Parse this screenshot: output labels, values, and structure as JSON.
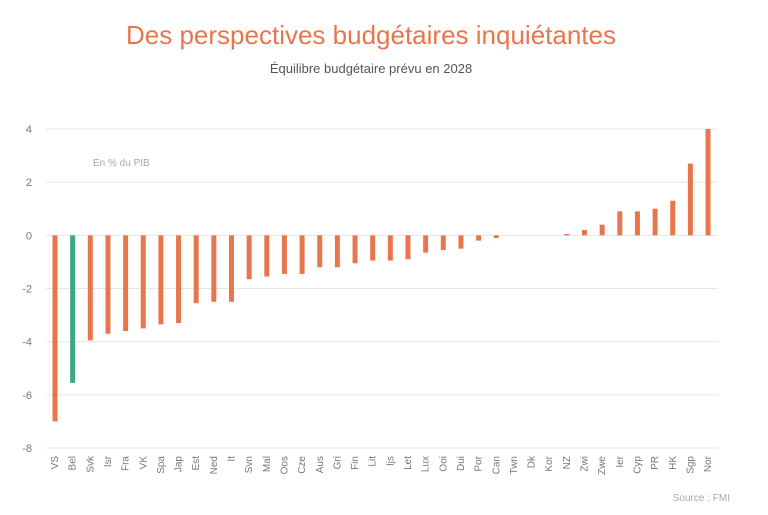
{
  "chart_data": {
    "type": "bar",
    "title": "Des perspectives budgétaires inquiétantes",
    "subtitle": "Équilibre budgétaire prévu en 2028",
    "unit_label": "En % du PIB",
    "source": "Source : FMI",
    "ylim": [
      -8,
      4
    ],
    "yticks": [
      4,
      2,
      0,
      -2,
      -4,
      -6,
      -8
    ],
    "grid": true,
    "colors": {
      "default": "#e8764d",
      "highlight": "#3aa887"
    },
    "highlight_category": "Bel",
    "categories": [
      "VS",
      "Bel",
      "Svk",
      "Isr",
      "Fra",
      "VK",
      "Spa",
      "Jap",
      "Est",
      "Ned",
      "It",
      "Svn",
      "Mal",
      "Oos",
      "Cze",
      "Aus",
      "Gri",
      "Fin",
      "Lit",
      "Ijs",
      "Let",
      "Lux",
      "Ooi",
      "Dui",
      "Por",
      "Can",
      "Twn",
      "Dk",
      "Kor",
      "NZ",
      "Zwi",
      "Zwe",
      "Ier",
      "Cyp",
      "PR",
      "HK",
      "Sgp",
      "Nor"
    ],
    "values": [
      -7.0,
      -5.55,
      -3.95,
      -3.7,
      -3.6,
      -3.5,
      -3.35,
      -3.3,
      -2.55,
      -2.5,
      -2.5,
      -1.65,
      -1.55,
      -1.45,
      -1.45,
      -1.2,
      -1.2,
      -1.05,
      -0.95,
      -0.95,
      -0.9,
      -0.65,
      -0.55,
      -0.5,
      -0.2,
      -0.1,
      0.0,
      0.0,
      0.0,
      0.05,
      0.2,
      0.4,
      0.9,
      0.9,
      1.0,
      1.3,
      2.7,
      4.0
    ]
  }
}
